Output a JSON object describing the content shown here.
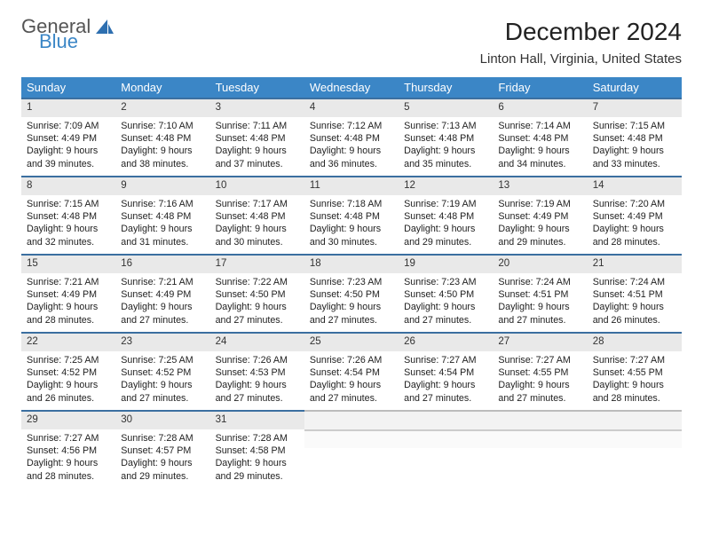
{
  "logo": {
    "line1": "General",
    "line2": "Blue"
  },
  "title": "December 2024",
  "location": "Linton Hall, Virginia, United States",
  "colors": {
    "header_bg": "#3b86c6",
    "header_text": "#ffffff",
    "daynum_bg": "#e9e9e9",
    "daynum_border": "#3b6fa0",
    "body_bg": "#ffffff",
    "text": "#222222"
  },
  "dow": [
    "Sunday",
    "Monday",
    "Tuesday",
    "Wednesday",
    "Thursday",
    "Friday",
    "Saturday"
  ],
  "weeks": [
    [
      {
        "num": "1",
        "sunrise": "Sunrise: 7:09 AM",
        "sunset": "Sunset: 4:49 PM",
        "day1": "Daylight: 9 hours",
        "day2": "and 39 minutes."
      },
      {
        "num": "2",
        "sunrise": "Sunrise: 7:10 AM",
        "sunset": "Sunset: 4:48 PM",
        "day1": "Daylight: 9 hours",
        "day2": "and 38 minutes."
      },
      {
        "num": "3",
        "sunrise": "Sunrise: 7:11 AM",
        "sunset": "Sunset: 4:48 PM",
        "day1": "Daylight: 9 hours",
        "day2": "and 37 minutes."
      },
      {
        "num": "4",
        "sunrise": "Sunrise: 7:12 AM",
        "sunset": "Sunset: 4:48 PM",
        "day1": "Daylight: 9 hours",
        "day2": "and 36 minutes."
      },
      {
        "num": "5",
        "sunrise": "Sunrise: 7:13 AM",
        "sunset": "Sunset: 4:48 PM",
        "day1": "Daylight: 9 hours",
        "day2": "and 35 minutes."
      },
      {
        "num": "6",
        "sunrise": "Sunrise: 7:14 AM",
        "sunset": "Sunset: 4:48 PM",
        "day1": "Daylight: 9 hours",
        "day2": "and 34 minutes."
      },
      {
        "num": "7",
        "sunrise": "Sunrise: 7:15 AM",
        "sunset": "Sunset: 4:48 PM",
        "day1": "Daylight: 9 hours",
        "day2": "and 33 minutes."
      }
    ],
    [
      {
        "num": "8",
        "sunrise": "Sunrise: 7:15 AM",
        "sunset": "Sunset: 4:48 PM",
        "day1": "Daylight: 9 hours",
        "day2": "and 32 minutes."
      },
      {
        "num": "9",
        "sunrise": "Sunrise: 7:16 AM",
        "sunset": "Sunset: 4:48 PM",
        "day1": "Daylight: 9 hours",
        "day2": "and 31 minutes."
      },
      {
        "num": "10",
        "sunrise": "Sunrise: 7:17 AM",
        "sunset": "Sunset: 4:48 PM",
        "day1": "Daylight: 9 hours",
        "day2": "and 30 minutes."
      },
      {
        "num": "11",
        "sunrise": "Sunrise: 7:18 AM",
        "sunset": "Sunset: 4:48 PM",
        "day1": "Daylight: 9 hours",
        "day2": "and 30 minutes."
      },
      {
        "num": "12",
        "sunrise": "Sunrise: 7:19 AM",
        "sunset": "Sunset: 4:48 PM",
        "day1": "Daylight: 9 hours",
        "day2": "and 29 minutes."
      },
      {
        "num": "13",
        "sunrise": "Sunrise: 7:19 AM",
        "sunset": "Sunset: 4:49 PM",
        "day1": "Daylight: 9 hours",
        "day2": "and 29 minutes."
      },
      {
        "num": "14",
        "sunrise": "Sunrise: 7:20 AM",
        "sunset": "Sunset: 4:49 PM",
        "day1": "Daylight: 9 hours",
        "day2": "and 28 minutes."
      }
    ],
    [
      {
        "num": "15",
        "sunrise": "Sunrise: 7:21 AM",
        "sunset": "Sunset: 4:49 PM",
        "day1": "Daylight: 9 hours",
        "day2": "and 28 minutes."
      },
      {
        "num": "16",
        "sunrise": "Sunrise: 7:21 AM",
        "sunset": "Sunset: 4:49 PM",
        "day1": "Daylight: 9 hours",
        "day2": "and 27 minutes."
      },
      {
        "num": "17",
        "sunrise": "Sunrise: 7:22 AM",
        "sunset": "Sunset: 4:50 PM",
        "day1": "Daylight: 9 hours",
        "day2": "and 27 minutes."
      },
      {
        "num": "18",
        "sunrise": "Sunrise: 7:23 AM",
        "sunset": "Sunset: 4:50 PM",
        "day1": "Daylight: 9 hours",
        "day2": "and 27 minutes."
      },
      {
        "num": "19",
        "sunrise": "Sunrise: 7:23 AM",
        "sunset": "Sunset: 4:50 PM",
        "day1": "Daylight: 9 hours",
        "day2": "and 27 minutes."
      },
      {
        "num": "20",
        "sunrise": "Sunrise: 7:24 AM",
        "sunset": "Sunset: 4:51 PM",
        "day1": "Daylight: 9 hours",
        "day2": "and 27 minutes."
      },
      {
        "num": "21",
        "sunrise": "Sunrise: 7:24 AM",
        "sunset": "Sunset: 4:51 PM",
        "day1": "Daylight: 9 hours",
        "day2": "and 26 minutes."
      }
    ],
    [
      {
        "num": "22",
        "sunrise": "Sunrise: 7:25 AM",
        "sunset": "Sunset: 4:52 PM",
        "day1": "Daylight: 9 hours",
        "day2": "and 26 minutes."
      },
      {
        "num": "23",
        "sunrise": "Sunrise: 7:25 AM",
        "sunset": "Sunset: 4:52 PM",
        "day1": "Daylight: 9 hours",
        "day2": "and 27 minutes."
      },
      {
        "num": "24",
        "sunrise": "Sunrise: 7:26 AM",
        "sunset": "Sunset: 4:53 PM",
        "day1": "Daylight: 9 hours",
        "day2": "and 27 minutes."
      },
      {
        "num": "25",
        "sunrise": "Sunrise: 7:26 AM",
        "sunset": "Sunset: 4:54 PM",
        "day1": "Daylight: 9 hours",
        "day2": "and 27 minutes."
      },
      {
        "num": "26",
        "sunrise": "Sunrise: 7:27 AM",
        "sunset": "Sunset: 4:54 PM",
        "day1": "Daylight: 9 hours",
        "day2": "and 27 minutes."
      },
      {
        "num": "27",
        "sunrise": "Sunrise: 7:27 AM",
        "sunset": "Sunset: 4:55 PM",
        "day1": "Daylight: 9 hours",
        "day2": "and 27 minutes."
      },
      {
        "num": "28",
        "sunrise": "Sunrise: 7:27 AM",
        "sunset": "Sunset: 4:55 PM",
        "day1": "Daylight: 9 hours",
        "day2": "and 28 minutes."
      }
    ],
    [
      {
        "num": "29",
        "sunrise": "Sunrise: 7:27 AM",
        "sunset": "Sunset: 4:56 PM",
        "day1": "Daylight: 9 hours",
        "day2": "and 28 minutes."
      },
      {
        "num": "30",
        "sunrise": "Sunrise: 7:28 AM",
        "sunset": "Sunset: 4:57 PM",
        "day1": "Daylight: 9 hours",
        "day2": "and 29 minutes."
      },
      {
        "num": "31",
        "sunrise": "Sunrise: 7:28 AM",
        "sunset": "Sunset: 4:58 PM",
        "day1": "Daylight: 9 hours",
        "day2": "and 29 minutes."
      },
      null,
      null,
      null,
      null
    ]
  ]
}
